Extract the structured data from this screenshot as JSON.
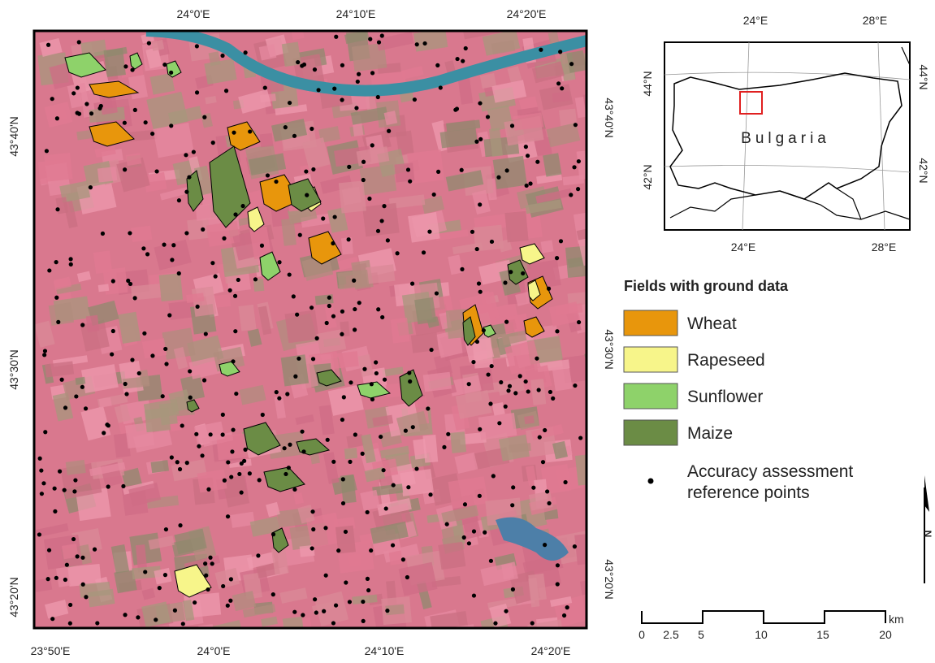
{
  "map": {
    "top_labels": [
      "24°0'E",
      "24°10'E",
      "24°20'E"
    ],
    "bottom_labels": [
      "23°50'E",
      "24°0'E",
      "24°10'E",
      "24°20'E"
    ],
    "left_labels": [
      "43°40'N",
      "43°30'N",
      "43°20'N"
    ],
    "right_labels": [
      "43°40'N",
      "43°30'N",
      "43°20'N"
    ]
  },
  "inset": {
    "top_labels": [
      "24°E",
      "28°E"
    ],
    "bottom_labels": [
      "24°E",
      "28°E"
    ],
    "left_labels": [
      "44°N",
      "42°N"
    ],
    "right_labels": [
      "44°N",
      "42°N"
    ],
    "country": "Bulgaria"
  },
  "legend": {
    "title": "Fields with ground data",
    "items": [
      {
        "label": "Wheat",
        "color": "#e8960c"
      },
      {
        "label": "Rapeseed",
        "color": "#f7f58a"
      },
      {
        "label": "Sunflower",
        "color": "#8ed26a"
      },
      {
        "label": "Maize",
        "color": "#6b8c45"
      }
    ],
    "points_label": [
      "Accuracy assessment",
      "reference points"
    ]
  },
  "scale_bar": {
    "labels": [
      "0",
      "2.5",
      "5",
      "10",
      "15",
      "20"
    ],
    "unit": "km"
  },
  "north_arrow": "N"
}
